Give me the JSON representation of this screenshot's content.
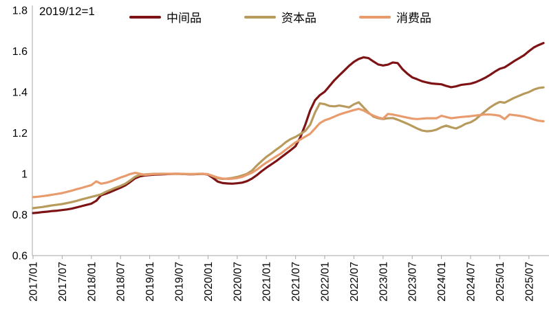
{
  "legend": [
    {
      "label": "中间品",
      "color": "#7E1315"
    },
    {
      "label": "资本品",
      "color": "#B89A5D"
    },
    {
      "label": "消费品",
      "color": "#E89B6C"
    }
  ],
  "chart_data": {
    "type": "line",
    "title": "2019/12=1",
    "grid": false,
    "legend_position": "top",
    "axis_color": "#A6A6A6",
    "ylim": [
      0.6,
      1.8
    ],
    "y_ticks": [
      0.6,
      0.8,
      1,
      1.2,
      1.4,
      1.6,
      1.8
    ],
    "y_tick_labels": [
      "0.6",
      "0.8",
      "1",
      "1.2",
      "1.4",
      "1.6",
      "1.8"
    ],
    "x_tick_labels": [
      "2017/01",
      "2017/07",
      "2018/01",
      "2018/07",
      "2019/01",
      "2019/07",
      "2020/01",
      "2020/07",
      "2021/01",
      "2021/07",
      "2022/01",
      "2022/07",
      "2023/01",
      "2023/07",
      "2024/01",
      "2024/07",
      "2025/01",
      "2025/07"
    ],
    "x": [
      "2017/01",
      "2017/02",
      "2017/03",
      "2017/04",
      "2017/05",
      "2017/06",
      "2017/07",
      "2017/08",
      "2017/09",
      "2017/10",
      "2017/11",
      "2017/12",
      "2018/01",
      "2018/02",
      "2018/03",
      "2018/04",
      "2018/05",
      "2018/06",
      "2018/07",
      "2018/08",
      "2018/09",
      "2018/10",
      "2018/11",
      "2018/12",
      "2019/01",
      "2019/02",
      "2019/03",
      "2019/04",
      "2019/05",
      "2019/06",
      "2019/07",
      "2019/08",
      "2019/09",
      "2019/10",
      "2019/11",
      "2019/12",
      "2020/01",
      "2020/02",
      "2020/03",
      "2020/04",
      "2020/05",
      "2020/06",
      "2020/07",
      "2020/08",
      "2020/09",
      "2020/10",
      "2020/11",
      "2020/12",
      "2021/01",
      "2021/02",
      "2021/03",
      "2021/04",
      "2021/05",
      "2021/06",
      "2021/07",
      "2021/08",
      "2021/09",
      "2021/10",
      "2021/11",
      "2021/12",
      "2022/01",
      "2022/02",
      "2022/03",
      "2022/04",
      "2022/05",
      "2022/06",
      "2022/07",
      "2022/08",
      "2022/09",
      "2022/10",
      "2022/11",
      "2022/12",
      "2023/01",
      "2023/02",
      "2023/03",
      "2023/04",
      "2023/05",
      "2023/06",
      "2023/07",
      "2023/08",
      "2023/09",
      "2023/10",
      "2023/11",
      "2023/12",
      "2024/01",
      "2024/02",
      "2024/03",
      "2024/04",
      "2024/05",
      "2024/06",
      "2024/07",
      "2024/08",
      "2024/09",
      "2024/10",
      "2024/11",
      "2024/12",
      "2025/01",
      "2025/02",
      "2025/03",
      "2025/04",
      "2025/05",
      "2025/06",
      "2025/07",
      "2025/08",
      "2025/09",
      "2025/10"
    ],
    "series": [
      {
        "name": "中间品",
        "color": "#7E1315",
        "values": [
          0.808,
          0.81,
          0.813,
          0.815,
          0.818,
          0.82,
          0.823,
          0.826,
          0.83,
          0.836,
          0.842,
          0.848,
          0.854,
          0.868,
          0.895,
          0.903,
          0.912,
          0.922,
          0.932,
          0.944,
          0.96,
          0.978,
          0.988,
          0.992,
          0.994,
          0.996,
          0.997,
          0.998,
          0.999,
          1.0,
          1.0,
          0.999,
          0.998,
          0.998,
          0.999,
          1.0,
          0.996,
          0.98,
          0.962,
          0.955,
          0.953,
          0.952,
          0.954,
          0.957,
          0.964,
          0.976,
          0.993,
          1.012,
          1.03,
          1.046,
          1.062,
          1.08,
          1.098,
          1.116,
          1.135,
          1.18,
          1.24,
          1.31,
          1.36,
          1.385,
          1.402,
          1.43,
          1.458,
          1.482,
          1.505,
          1.528,
          1.548,
          1.562,
          1.57,
          1.566,
          1.55,
          1.535,
          1.53,
          1.534,
          1.545,
          1.542,
          1.512,
          1.49,
          1.472,
          1.463,
          1.453,
          1.447,
          1.442,
          1.44,
          1.438,
          1.43,
          1.424,
          1.428,
          1.435,
          1.438,
          1.441,
          1.448,
          1.458,
          1.47,
          1.484,
          1.5,
          1.514,
          1.521,
          1.536,
          1.552,
          1.566,
          1.58,
          1.6,
          1.618,
          1.63,
          1.64
        ]
      },
      {
        "name": "资本品",
        "color": "#B89A5D",
        "values": [
          0.832,
          0.835,
          0.838,
          0.842,
          0.846,
          0.849,
          0.852,
          0.857,
          0.862,
          0.868,
          0.875,
          0.881,
          0.887,
          0.893,
          0.9,
          0.912,
          0.922,
          0.932,
          0.941,
          0.952,
          0.968,
          0.986,
          0.995,
          0.997,
          0.999,
          1.0,
          1.0,
          1.0,
          1.0,
          1.0,
          1.0,
          0.999,
          0.999,
          0.999,
          1.0,
          1.0,
          0.998,
          0.988,
          0.978,
          0.975,
          0.977,
          0.98,
          0.985,
          0.992,
          1.0,
          1.015,
          1.04,
          1.062,
          1.083,
          1.1,
          1.118,
          1.135,
          1.155,
          1.17,
          1.181,
          1.195,
          1.21,
          1.24,
          1.3,
          1.345,
          1.341,
          1.332,
          1.33,
          1.334,
          1.33,
          1.325,
          1.34,
          1.35,
          1.325,
          1.3,
          1.28,
          1.272,
          1.268,
          1.272,
          1.273,
          1.265,
          1.255,
          1.245,
          1.234,
          1.222,
          1.212,
          1.208,
          1.21,
          1.216,
          1.228,
          1.236,
          1.228,
          1.222,
          1.232,
          1.245,
          1.252,
          1.266,
          1.286,
          1.306,
          1.325,
          1.34,
          1.352,
          1.348,
          1.36,
          1.372,
          1.382,
          1.392,
          1.4,
          1.412,
          1.42,
          1.423
        ]
      },
      {
        "name": "消费品",
        "color": "#E89B6C",
        "values": [
          0.886,
          0.888,
          0.891,
          0.894,
          0.898,
          0.902,
          0.906,
          0.912,
          0.918,
          0.925,
          0.931,
          0.938,
          0.945,
          0.963,
          0.952,
          0.956,
          0.963,
          0.972,
          0.982,
          0.99,
          0.999,
          1.005,
          1.0,
          0.995,
          0.997,
          0.999,
          1.0,
          1.0,
          1.0,
          1.0,
          1.0,
          1.0,
          0.999,
          0.999,
          1.0,
          1.0,
          0.998,
          0.99,
          0.982,
          0.977,
          0.975,
          0.976,
          0.979,
          0.985,
          0.995,
          1.005,
          1.02,
          1.038,
          1.055,
          1.07,
          1.085,
          1.1,
          1.118,
          1.136,
          1.154,
          1.168,
          1.182,
          1.196,
          1.222,
          1.248,
          1.262,
          1.27,
          1.28,
          1.29,
          1.298,
          1.305,
          1.312,
          1.318,
          1.31,
          1.296,
          1.285,
          1.276,
          1.27,
          1.293,
          1.29,
          1.285,
          1.28,
          1.275,
          1.27,
          1.268,
          1.27,
          1.272,
          1.272,
          1.272,
          1.284,
          1.278,
          1.272,
          1.275,
          1.278,
          1.28,
          1.282,
          1.285,
          1.288,
          1.29,
          1.29,
          1.288,
          1.284,
          1.268,
          1.29,
          1.287,
          1.284,
          1.28,
          1.274,
          1.266,
          1.26,
          1.257
        ]
      }
    ]
  }
}
